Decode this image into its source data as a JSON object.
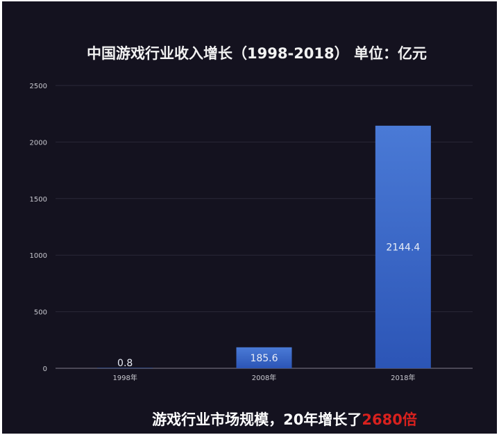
{
  "chart_data": {
    "type": "bar",
    "title": "中国游戏行业收入增长（1998-2018） 单位：亿元",
    "categories": [
      "1998年",
      "2008年",
      "2018年"
    ],
    "values": [
      0.8,
      185.6,
      2144.4
    ],
    "data_labels": [
      "0.8",
      "185.6",
      "2144.4"
    ],
    "yticks": [
      "0",
      "500",
      "1000",
      "1500",
      "2000",
      "2500"
    ],
    "ylim": [
      0,
      2500
    ],
    "grid": true,
    "xlabel": "",
    "ylabel": "",
    "bar_color_top": "#4a7ad6",
    "bar_color_bottom": "#2b54b3",
    "background": "#14121f"
  },
  "caption": {
    "main": "游戏行业市场规模，20年增长了",
    "highlight": "2680倍",
    "highlight_color": "#d8211e"
  }
}
